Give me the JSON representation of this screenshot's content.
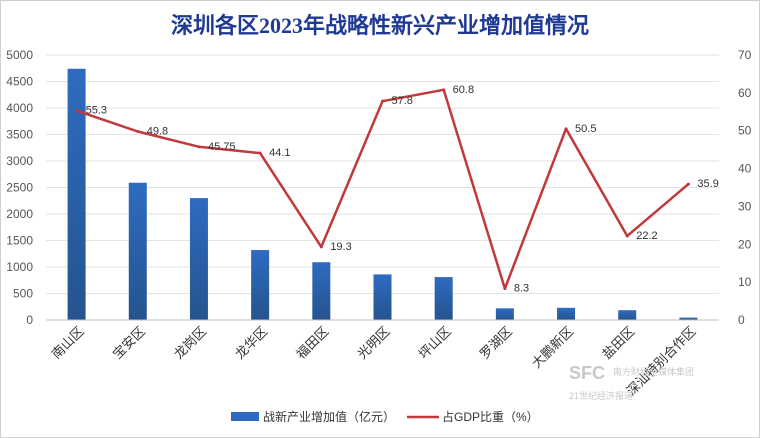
{
  "chart_data": {
    "type": "bar",
    "title": "深圳各区2023年战略性新兴产业增加值情况",
    "categories": [
      "南山区",
      "宝安区",
      "龙岗区",
      "龙华区",
      "福田区",
      "光明区",
      "坪山区",
      "罗湖区",
      "大鹏新区",
      "盐田区",
      "深汕特别合作区"
    ],
    "series": [
      {
        "name": "战新产业增加值（亿元）",
        "type": "bar",
        "axis": "left",
        "color": "#2e6bc0",
        "values": [
          4740,
          2590,
          2300,
          1320,
          1090,
          860,
          810,
          220,
          230,
          185,
          45
        ]
      },
      {
        "name": "占GDP比重（%）",
        "type": "line",
        "axis": "right",
        "color": "#c0393b",
        "values": [
          55.3,
          49.8,
          45.75,
          44.1,
          19.3,
          57.8,
          60.8,
          8.3,
          50.5,
          22.2,
          35.9
        ],
        "labels": [
          "55.3",
          "49.8",
          "45.75",
          "44.1",
          "19.3",
          "57.8",
          "60.8",
          "8.3",
          "50.5",
          "22.2",
          "35.9"
        ]
      }
    ],
    "ylim": [
      0,
      5000
    ],
    "yticks": [
      "0",
      "500",
      "1000",
      "1500",
      "2000",
      "2500",
      "3000",
      "3500",
      "4000",
      "4500",
      "5000"
    ],
    "y2lim": [
      0,
      70
    ],
    "y2ticks": [
      "0",
      "10",
      "20",
      "30",
      "40",
      "50",
      "60",
      "70"
    ],
    "grid": true,
    "legend_position": "bottom"
  },
  "watermark": {
    "mark": "SFC",
    "line1": "南方财经全媒体集团",
    "line2": "21世纪经济报道"
  }
}
